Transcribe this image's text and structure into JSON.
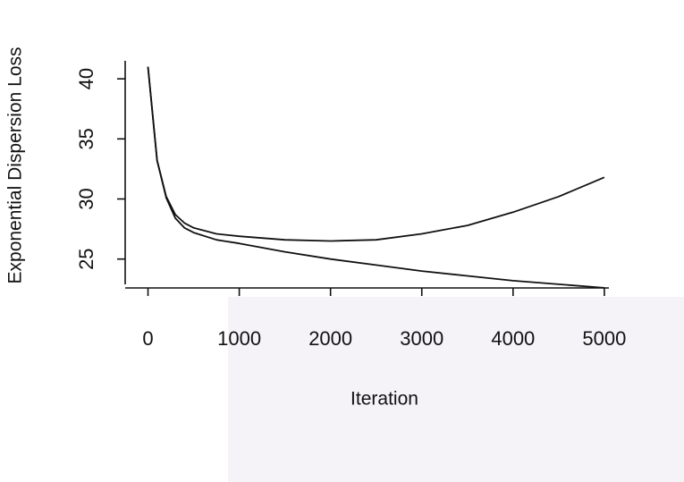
{
  "chart_data": {
    "type": "line",
    "x_label": "Iteration",
    "y_label": "Exponential Dispersion Loss",
    "x": [
      0,
      100,
      200,
      300,
      400,
      500,
      750,
      1000,
      1500,
      2000,
      2500,
      3000,
      3500,
      4000,
      4500,
      5000
    ],
    "series": [
      {
        "color": "#111111",
        "values": [
          41,
          33.2,
          30.2,
          28.7,
          28,
          27.6,
          27.1,
          26.9,
          26.6,
          26.5,
          26.6,
          27.1,
          27.8,
          28.9,
          30.2,
          31.8
        ]
      },
      {
        "color": "#111111",
        "values": [
          41,
          33.2,
          30.1,
          28.4,
          27.6,
          27.2,
          26.6,
          26.3,
          25.6,
          25,
          24.5,
          24,
          23.6,
          23.2,
          22.9,
          22.6
        ]
      }
    ],
    "xlim": [
      -250,
      5050
    ],
    "xticks": [
      0,
      1000,
      2000,
      3000,
      4000,
      5000
    ],
    "ylim": [
      22,
      41.5
    ],
    "yticks": [
      25,
      30,
      35,
      40
    ],
    "grid": false
  }
}
